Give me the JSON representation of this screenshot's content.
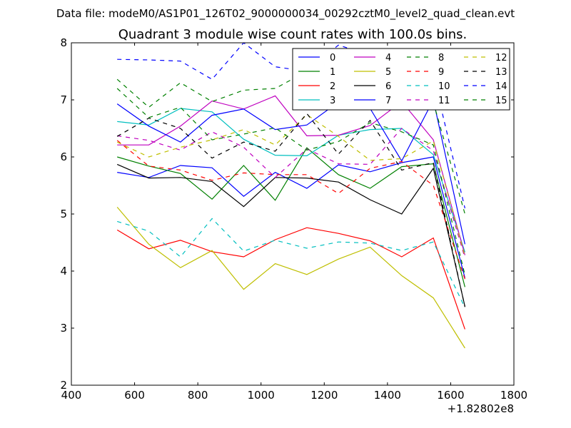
{
  "chart_data": {
    "type": "line",
    "suptitle": "Data file: modeM0/AS1P01_126T02_9000000034_00292cztM0_level2_quad_clean.evt",
    "title": "Quadrant 3 module wise count rates with 100.0s bins.",
    "xlabel": "",
    "ylabel": "",
    "x_offset_label": "+1.82802e8",
    "xlim": [
      400,
      1800
    ],
    "ylim": [
      2,
      8
    ],
    "xticks": [
      400,
      600,
      800,
      1000,
      1200,
      1400,
      1600,
      1800
    ],
    "yticks": [
      2,
      3,
      4,
      5,
      6,
      7,
      8
    ],
    "grid": false,
    "legend_position": "top-right",
    "x": [
      545,
      645,
      745,
      845,
      945,
      1045,
      1145,
      1245,
      1345,
      1445,
      1545,
      1645
    ],
    "series": [
      {
        "name": "0",
        "color": "#0000ff",
        "dash": "solid",
        "values": [
          5.73,
          5.64,
          5.85,
          5.81,
          5.31,
          5.73,
          5.45,
          5.86,
          5.74,
          5.9,
          6.0,
          3.88
        ]
      },
      {
        "name": "1",
        "color": "#008000",
        "dash": "solid",
        "values": [
          6.0,
          5.84,
          5.71,
          5.26,
          5.85,
          5.24,
          6.16,
          5.69,
          5.45,
          5.83,
          5.88,
          3.72
        ]
      },
      {
        "name": "2",
        "color": "#ff0000",
        "dash": "solid",
        "values": [
          4.72,
          4.39,
          4.54,
          4.34,
          4.25,
          4.55,
          4.76,
          4.66,
          4.53,
          4.25,
          4.58,
          2.98
        ]
      },
      {
        "name": "3",
        "color": "#00bfbf",
        "dash": "solid",
        "values": [
          6.62,
          6.56,
          6.85,
          6.79,
          6.31,
          6.03,
          6.02,
          6.38,
          6.48,
          6.5,
          6.04,
          4.33
        ]
      },
      {
        "name": "4",
        "color": "#bf00bf",
        "dash": "solid",
        "values": [
          6.21,
          6.21,
          6.54,
          6.98,
          6.84,
          7.07,
          6.37,
          6.38,
          6.55,
          6.97,
          6.3,
          4.28
        ]
      },
      {
        "name": "5",
        "color": "#bfbf00",
        "dash": "solid",
        "values": [
          5.12,
          4.47,
          4.06,
          4.36,
          3.68,
          4.13,
          3.94,
          4.21,
          4.42,
          3.92,
          3.53,
          2.65
        ]
      },
      {
        "name": "6",
        "color": "#000000",
        "dash": "solid",
        "values": [
          5.87,
          5.63,
          5.64,
          5.57,
          5.13,
          5.64,
          5.63,
          5.56,
          5.25,
          5.0,
          5.8,
          3.38
        ]
      },
      {
        "name": "7",
        "color": "#0000ff",
        "dash": "solid",
        "values": [
          6.93,
          6.54,
          6.26,
          6.73,
          6.84,
          6.48,
          6.56,
          6.96,
          6.85,
          5.93,
          7.0,
          4.47
        ]
      },
      {
        "name": "8",
        "color": "#008000",
        "dash": "dashed",
        "values": [
          7.36,
          6.87,
          7.3,
          6.97,
          7.17,
          7.2,
          7.5,
          7.1,
          6.9,
          7.12,
          6.96,
          5.0
        ]
      },
      {
        "name": "9",
        "color": "#ff0000",
        "dash": "dashed",
        "values": [
          6.29,
          5.84,
          5.77,
          5.59,
          5.72,
          5.69,
          5.69,
          5.36,
          5.8,
          5.92,
          5.5,
          3.86
        ]
      },
      {
        "name": "10",
        "color": "#00bfbf",
        "dash": "dashed",
        "values": [
          4.87,
          4.7,
          4.25,
          4.92,
          4.35,
          4.54,
          4.4,
          4.51,
          4.49,
          4.36,
          4.51,
          3.36
        ]
      },
      {
        "name": "11",
        "color": "#bf00bf",
        "dash": "dashed",
        "values": [
          6.37,
          6.29,
          6.12,
          6.44,
          6.17,
          5.64,
          6.14,
          5.88,
          5.87,
          6.5,
          6.11,
          4.23
        ]
      },
      {
        "name": "12",
        "color": "#bfbf00",
        "dash": "dashed",
        "values": [
          6.26,
          6.0,
          6.17,
          6.3,
          6.48,
          6.21,
          6.74,
          6.36,
          5.94,
          5.97,
          6.28,
          4.26
        ]
      },
      {
        "name": "13",
        "color": "#000000",
        "dash": "dashed",
        "values": [
          6.36,
          6.68,
          6.5,
          5.98,
          6.26,
          6.1,
          6.76,
          6.05,
          6.64,
          5.77,
          5.9,
          3.37
        ]
      },
      {
        "name": "14",
        "color": "#0000ff",
        "dash": "dashed",
        "values": [
          7.71,
          7.7,
          7.68,
          7.36,
          8.0,
          7.58,
          7.5,
          7.96,
          7.78,
          7.24,
          7.43,
          5.1
        ]
      },
      {
        "name": "15",
        "color": "#008000",
        "dash": "dashed",
        "values": [
          7.2,
          6.69,
          6.87,
          6.3,
          6.4,
          6.51,
          6.12,
          6.27,
          6.6,
          6.44,
          6.21,
          3.93
        ]
      }
    ]
  }
}
